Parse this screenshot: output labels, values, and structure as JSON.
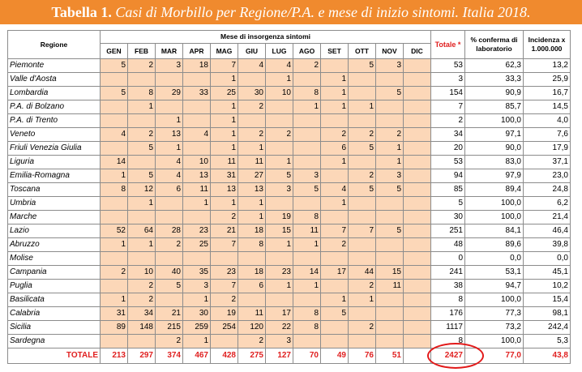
{
  "title": {
    "label": "Tabella 1.",
    "text": "Casi di Morbillo per Regione/P.A. e mese di inizio sintomi. Italia 2018."
  },
  "headers": {
    "regione": "Regione",
    "mese": "Mese di insorgenza sintomi",
    "months": [
      "GEN",
      "FEB",
      "MAR",
      "APR",
      "MAG",
      "GIU",
      "LUG",
      "AGO",
      "SET",
      "OTT",
      "NOV",
      "DIC"
    ],
    "totale": "Totale *",
    "conferma": "% conferma di laboratorio",
    "incidenza": "Incidenza x 1.000.000"
  },
  "rows": [
    {
      "name": "Piemonte",
      "m": [
        "5",
        "2",
        "3",
        "18",
        "7",
        "4",
        "4",
        "2",
        "",
        "5",
        "3",
        ""
      ],
      "total": "53",
      "pct": "62,3",
      "inc": "13,2"
    },
    {
      "name": "Valle d'Aosta",
      "m": [
        "",
        "",
        "",
        "",
        "1",
        "",
        "1",
        "",
        "1",
        "",
        "",
        ""
      ],
      "total": "3",
      "pct": "33,3",
      "inc": "25,9"
    },
    {
      "name": "Lombardia",
      "m": [
        "5",
        "8",
        "29",
        "33",
        "25",
        "30",
        "10",
        "8",
        "1",
        "",
        "5",
        ""
      ],
      "total": "154",
      "pct": "90,9",
      "inc": "16,7"
    },
    {
      "name": "P.A. di Bolzano",
      "m": [
        "",
        "1",
        "",
        "",
        "1",
        "2",
        "",
        "1",
        "1",
        "1",
        "",
        ""
      ],
      "total": "7",
      "pct": "85,7",
      "inc": "14,5"
    },
    {
      "name": "P.A. di Trento",
      "m": [
        "",
        "",
        "1",
        "",
        "1",
        "",
        "",
        "",
        "",
        "",
        "",
        ""
      ],
      "total": "2",
      "pct": "100,0",
      "inc": "4,0"
    },
    {
      "name": "Veneto",
      "m": [
        "4",
        "2",
        "13",
        "4",
        "1",
        "2",
        "2",
        "",
        "2",
        "2",
        "2",
        ""
      ],
      "total": "34",
      "pct": "97,1",
      "inc": "7,6"
    },
    {
      "name": "Friuli Venezia Giulia",
      "m": [
        "",
        "5",
        "1",
        "",
        "1",
        "1",
        "",
        "",
        "6",
        "5",
        "1",
        ""
      ],
      "total": "20",
      "pct": "90,0",
      "inc": "17,9"
    },
    {
      "name": "Liguria",
      "m": [
        "14",
        "",
        "4",
        "10",
        "11",
        "11",
        "1",
        "",
        "1",
        "",
        "1",
        ""
      ],
      "total": "53",
      "pct": "83,0",
      "inc": "37,1"
    },
    {
      "name": "Emilia-Romagna",
      "m": [
        "1",
        "5",
        "4",
        "13",
        "31",
        "27",
        "5",
        "3",
        "",
        "2",
        "3",
        ""
      ],
      "total": "94",
      "pct": "97,9",
      "inc": "23,0"
    },
    {
      "name": "Toscana",
      "m": [
        "8",
        "12",
        "6",
        "11",
        "13",
        "13",
        "3",
        "5",
        "4",
        "5",
        "5",
        ""
      ],
      "total": "85",
      "pct": "89,4",
      "inc": "24,8"
    },
    {
      "name": "Umbria",
      "m": [
        "",
        "1",
        "",
        "1",
        "1",
        "1",
        "",
        "",
        "1",
        "",
        "",
        ""
      ],
      "total": "5",
      "pct": "100,0",
      "inc": "6,2"
    },
    {
      "name": "Marche",
      "m": [
        "",
        "",
        "",
        "",
        "2",
        "1",
        "19",
        "8",
        "",
        "",
        "",
        ""
      ],
      "total": "30",
      "pct": "100,0",
      "inc": "21,4"
    },
    {
      "name": "Lazio",
      "m": [
        "52",
        "64",
        "28",
        "23",
        "21",
        "18",
        "15",
        "11",
        "7",
        "7",
        "5",
        ""
      ],
      "total": "251",
      "pct": "84,1",
      "inc": "46,4"
    },
    {
      "name": "Abruzzo",
      "m": [
        "1",
        "1",
        "2",
        "25",
        "7",
        "8",
        "1",
        "1",
        "2",
        "",
        "",
        ""
      ],
      "total": "48",
      "pct": "89,6",
      "inc": "39,8"
    },
    {
      "name": "Molise",
      "m": [
        "",
        "",
        "",
        "",
        "",
        "",
        "",
        "",
        "",
        "",
        "",
        ""
      ],
      "total": "0",
      "pct": "0,0",
      "inc": "0,0"
    },
    {
      "name": "Campania",
      "m": [
        "2",
        "10",
        "40",
        "35",
        "23",
        "18",
        "23",
        "14",
        "17",
        "44",
        "15",
        ""
      ],
      "total": "241",
      "pct": "53,1",
      "inc": "45,1"
    },
    {
      "name": "Puglia",
      "m": [
        "",
        "2",
        "5",
        "3",
        "7",
        "6",
        "1",
        "1",
        "",
        "2",
        "11",
        ""
      ],
      "total": "38",
      "pct": "94,7",
      "inc": "10,2"
    },
    {
      "name": "Basilicata",
      "m": [
        "1",
        "2",
        "",
        "1",
        "2",
        "",
        "",
        "",
        "1",
        "1",
        "",
        ""
      ],
      "total": "8",
      "pct": "100,0",
      "inc": "15,4"
    },
    {
      "name": "Calabria",
      "m": [
        "31",
        "34",
        "21",
        "30",
        "19",
        "11",
        "17",
        "8",
        "5",
        "",
        "",
        ""
      ],
      "total": "176",
      "pct": "77,3",
      "inc": "98,1"
    },
    {
      "name": "Sicilia",
      "m": [
        "89",
        "148",
        "215",
        "259",
        "254",
        "120",
        "22",
        "8",
        "",
        "2",
        "",
        ""
      ],
      "total": "1117",
      "pct": "73,2",
      "inc": "242,4"
    },
    {
      "name": "Sardegna",
      "m": [
        "",
        "",
        "2",
        "1",
        "",
        "2",
        "3",
        "",
        "",
        "",
        "",
        ""
      ],
      "total": "8",
      "pct": "100,0",
      "inc": "5,3"
    }
  ],
  "totals": {
    "label": "TOTALE",
    "months": [
      "213",
      "297",
      "374",
      "467",
      "428",
      "275",
      "127",
      "70",
      "49",
      "76",
      "51",
      ""
    ],
    "total": "2427",
    "pct": "77,0",
    "inc": "43,8"
  },
  "colors": {
    "banner": "#f08a2e",
    "month_cell": "#fcd7b8",
    "highlight": "#e02020"
  }
}
